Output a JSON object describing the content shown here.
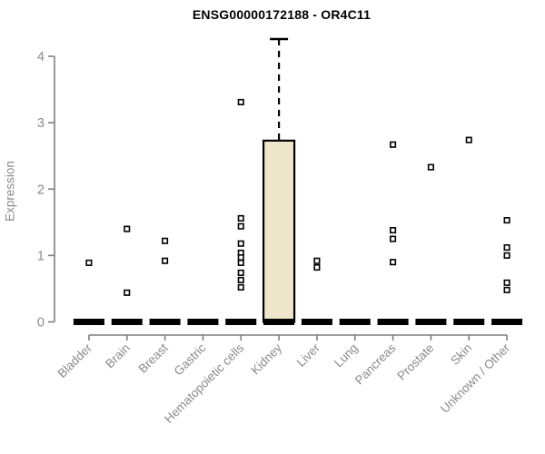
{
  "chart_data": {
    "type": "boxplot",
    "title": "ENSG00000172188 - OR4C11",
    "ylabel": "Expression",
    "xlabel": "",
    "yticks": [
      0,
      1,
      2,
      3,
      4
    ],
    "ylim": [
      0,
      4.3
    ],
    "grid": false,
    "legend": "none",
    "colors": {
      "axis_line": "#7f7f7f",
      "axis_text": "#8a8a8a",
      "box_fill": "#ede6cb",
      "box_stroke": "#000000",
      "zero_bar": "#000000",
      "point_stroke": "#000000",
      "point_fill": "#ffffff",
      "title_text": "#000000"
    },
    "categories": [
      "Bladder",
      "Brain",
      "Breast",
      "Gastric",
      "Hematopoietic cells",
      "Kidney",
      "Liver",
      "Lung",
      "Pancreas",
      "Prostate",
      "Skin",
      "Unknown / Other"
    ],
    "series": [
      {
        "name": "Bladder",
        "box": {
          "q1": 0,
          "median": 0,
          "q3": 0,
          "whisker_high": 0
        },
        "points": [
          0.89
        ]
      },
      {
        "name": "Brain",
        "box": {
          "q1": 0,
          "median": 0,
          "q3": 0,
          "whisker_high": 0
        },
        "points": [
          1.4,
          0.44
        ]
      },
      {
        "name": "Breast",
        "box": {
          "q1": 0,
          "median": 0,
          "q3": 0,
          "whisker_high": 0
        },
        "points": [
          1.22,
          0.92
        ]
      },
      {
        "name": "Gastric",
        "box": {
          "q1": 0,
          "median": 0,
          "q3": 0,
          "whisker_high": 0
        },
        "points": []
      },
      {
        "name": "Hematopoietic cells",
        "box": {
          "q1": 0,
          "median": 0,
          "q3": 0,
          "whisker_high": 0
        },
        "points": [
          3.31,
          1.56,
          1.44,
          1.18,
          1.04,
          0.97,
          0.89,
          0.74,
          0.63,
          0.52
        ]
      },
      {
        "name": "Kidney",
        "box": {
          "q1": 0,
          "median": 0,
          "q3": 2.73,
          "whisker_high": 4.26
        },
        "points": []
      },
      {
        "name": "Liver",
        "box": {
          "q1": 0,
          "median": 0,
          "q3": 0,
          "whisker_high": 0
        },
        "points": [
          0.92,
          0.82
        ]
      },
      {
        "name": "Lung",
        "box": {
          "q1": 0,
          "median": 0,
          "q3": 0,
          "whisker_high": 0
        },
        "points": []
      },
      {
        "name": "Pancreas",
        "box": {
          "q1": 0,
          "median": 0,
          "q3": 0,
          "whisker_high": 0
        },
        "points": [
          2.67,
          1.38,
          1.25,
          0.9
        ]
      },
      {
        "name": "Prostate",
        "box": {
          "q1": 0,
          "median": 0,
          "q3": 0,
          "whisker_high": 0
        },
        "points": [
          2.33
        ]
      },
      {
        "name": "Skin",
        "box": {
          "q1": 0,
          "median": 0,
          "q3": 0,
          "whisker_high": 0
        },
        "points": [
          2.74
        ]
      },
      {
        "name": "Unknown / Other",
        "box": {
          "q1": 0,
          "median": 0,
          "q3": 0,
          "whisker_high": 0
        },
        "points": [
          1.53,
          1.12,
          1.0,
          0.59,
          0.48
        ]
      }
    ]
  }
}
